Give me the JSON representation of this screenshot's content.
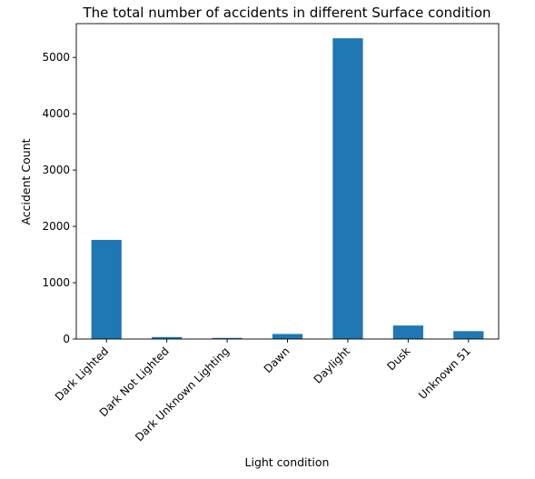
{
  "chart_data": {
    "type": "bar",
    "title": "The total number of accidents in different Surface condition",
    "xlabel": "Light condition",
    "ylabel": "Accident Count",
    "categories": [
      "Dark Lighted",
      "Dark Not Lighted",
      "Dark Unknown Lighting",
      "Dawn",
      "Daylight",
      "Dusk",
      "Unknown 51"
    ],
    "values": [
      1760,
      35,
      20,
      90,
      5340,
      240,
      140
    ],
    "ylim": [
      0,
      5600
    ],
    "yticks": [
      0,
      1000,
      2000,
      3000,
      4000,
      5000
    ],
    "bar_color": "#1f77b4",
    "grid": false,
    "legend": "none"
  }
}
